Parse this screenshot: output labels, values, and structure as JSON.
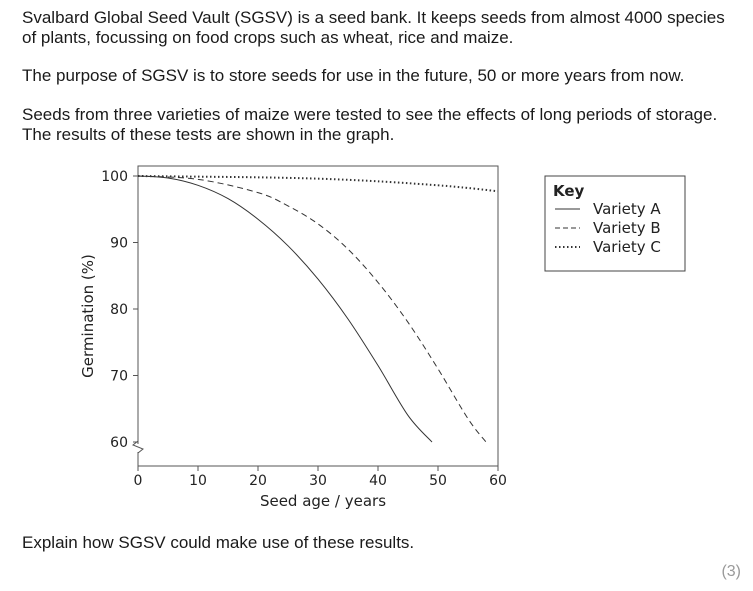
{
  "intro": {
    "paragraph1": "Svalbard Global Seed Vault (SGSV) is a seed bank. It keeps seeds from almost 4000 species of plants, focussing on food crops such as wheat, rice and maize.",
    "paragraph2": "The purpose of SGSV is to store seeds for use in the future, 50 or more years from now.",
    "paragraph3": "Seeds from three varieties of maize were tested to see the effects of long periods of storage. The results of these tests are shown in the graph."
  },
  "chart_data": {
    "type": "line",
    "xlabel": "Seed age / years",
    "ylabel": "Germination (%)",
    "xlim": [
      0,
      60
    ],
    "ylim": [
      60,
      100
    ],
    "xticks": [
      0,
      10,
      20,
      30,
      40,
      50,
      60
    ],
    "yticks": [
      100,
      90,
      80,
      70,
      60
    ],
    "y_axis_break": true,
    "grid": false,
    "legend": {
      "title": "Key",
      "placement": "right"
    },
    "series": [
      {
        "name": "Variety A",
        "style": "solid",
        "x": [
          0,
          5,
          10,
          15,
          20,
          25,
          30,
          35,
          40,
          45,
          49
        ],
        "y": [
          100,
          99.7,
          98.6,
          96.6,
          93.5,
          89.5,
          84.5,
          78.5,
          71.5,
          64,
          60
        ]
      },
      {
        "name": "Variety B",
        "style": "dashed",
        "x": [
          0,
          10,
          20,
          25,
          30,
          35,
          40,
          45,
          50,
          55,
          58
        ],
        "y": [
          100,
          99.5,
          97.5,
          95.5,
          92.8,
          89,
          84,
          78,
          71,
          63.5,
          60
        ]
      },
      {
        "name": "Variety C",
        "style": "dotted",
        "x": [
          0,
          10,
          20,
          30,
          40,
          50,
          55,
          60
        ],
        "y": [
          100,
          99.9,
          99.8,
          99.6,
          99.2,
          98.6,
          98.2,
          97.7
        ]
      }
    ]
  },
  "question": {
    "text": "Explain how SGSV could make use of these results.",
    "marks": "(3)"
  }
}
